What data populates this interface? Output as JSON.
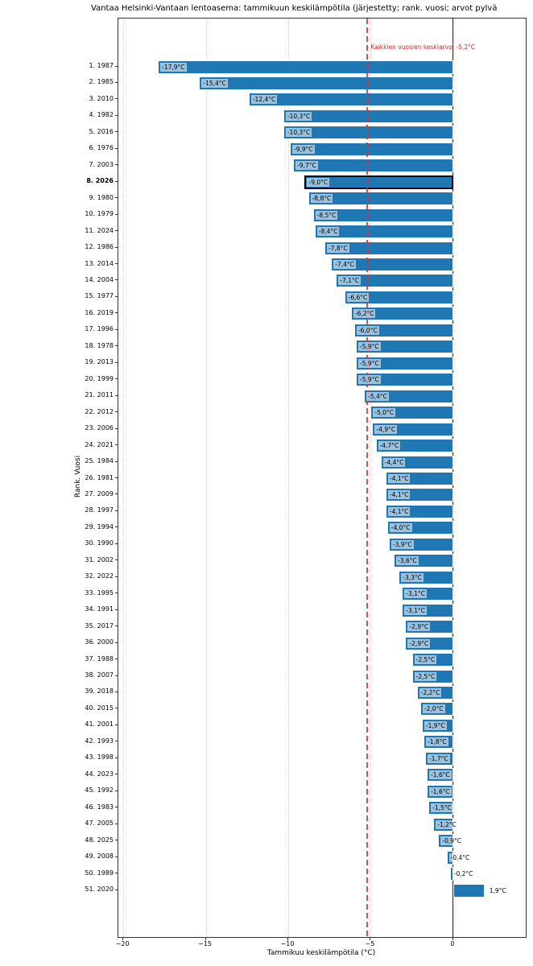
{
  "title": "Vantaa Helsinki-Vantaan lentoasema: tammikuun keskilämpötila (järjestetty; rank. vuosi; arvot pylvä",
  "axes": {
    "xlabel": "Tammikuu keskilämpötila (°C)",
    "ylabel": "Rank. Vuosi",
    "xtick_values": [
      -20,
      -15,
      -10,
      -5,
      0
    ],
    "xtick_labels": [
      "−20",
      "−15",
      "−10",
      "−5",
      "0"
    ],
    "xlim": [
      -20.3,
      4.4
    ]
  },
  "annotation": {
    "text": "Kaikkien vuosien keskiarvo: -5,2°C",
    "value": -5.2,
    "color": "#d62728"
  },
  "chart_data": {
    "type": "bar",
    "orientation": "horizontal",
    "title": "Vantaa Helsinki-Vantaan lentoasema: tammikuun keskilämpötila (järjestetty; rank. vuosi; arvot pylvä",
    "xlabel": "Tammikuu keskilämpötila (°C)",
    "ylabel": "Rank. Vuosi",
    "xlim": [
      -20.3,
      4.4
    ],
    "grid": "dotted-vertical",
    "bar_color": "#1f77b4",
    "bar_edge_color": "#ffffff",
    "highlight_edge_color": "#000000",
    "zero_line_color": "#2b2b2b",
    "mean_line": {
      "value": -5.2,
      "style": "dashed",
      "color": "#d62728"
    },
    "rows": [
      {
        "rank": 1,
        "year": 1987,
        "value": -17.9,
        "label": "-17,9°C",
        "highlight": false
      },
      {
        "rank": 2,
        "year": 1985,
        "value": -15.4,
        "label": "-15,4°C",
        "highlight": false
      },
      {
        "rank": 3,
        "year": 2010,
        "value": -12.4,
        "label": "-12,4°C",
        "highlight": false
      },
      {
        "rank": 4,
        "year": 1982,
        "value": -10.3,
        "label": "-10,3°C",
        "highlight": false
      },
      {
        "rank": 5,
        "year": 2016,
        "value": -10.3,
        "label": "-10,3°C",
        "highlight": false
      },
      {
        "rank": 6,
        "year": 1976,
        "value": -9.9,
        "label": "-9,9°C",
        "highlight": false
      },
      {
        "rank": 7,
        "year": 2003,
        "value": -9.7,
        "label": "-9,7°C",
        "highlight": false
      },
      {
        "rank": 8,
        "year": 2026,
        "value": -9.0,
        "label": "-9,0°C",
        "highlight": true
      },
      {
        "rank": 9,
        "year": 1980,
        "value": -8.8,
        "label": "-8,8°C",
        "highlight": false
      },
      {
        "rank": 10,
        "year": 1979,
        "value": -8.5,
        "label": "-8,5°C",
        "highlight": false
      },
      {
        "rank": 11,
        "year": 2024,
        "value": -8.4,
        "label": "-8,4°C",
        "highlight": false
      },
      {
        "rank": 12,
        "year": 1986,
        "value": -7.8,
        "label": "-7,8°C",
        "highlight": false
      },
      {
        "rank": 13,
        "year": 2014,
        "value": -7.4,
        "label": "-7,4°C",
        "highlight": false
      },
      {
        "rank": 14,
        "year": 2004,
        "value": -7.1,
        "label": "-7,1°C",
        "highlight": false
      },
      {
        "rank": 15,
        "year": 1977,
        "value": -6.6,
        "label": "-6,6°C",
        "highlight": false
      },
      {
        "rank": 16,
        "year": 2019,
        "value": -6.2,
        "label": "-6,2°C",
        "highlight": false
      },
      {
        "rank": 17,
        "year": 1996,
        "value": -6.0,
        "label": "-6,0°C",
        "highlight": false
      },
      {
        "rank": 18,
        "year": 1978,
        "value": -5.9,
        "label": "-5,9°C",
        "highlight": false
      },
      {
        "rank": 19,
        "year": 2013,
        "value": -5.9,
        "label": "-5,9°C",
        "highlight": false
      },
      {
        "rank": 20,
        "year": 1999,
        "value": -5.9,
        "label": "-5,9°C",
        "highlight": false
      },
      {
        "rank": 21,
        "year": 2011,
        "value": -5.4,
        "label": "-5,4°C",
        "highlight": false
      },
      {
        "rank": 22,
        "year": 2012,
        "value": -5.0,
        "label": "-5,0°C",
        "highlight": false
      },
      {
        "rank": 23,
        "year": 2006,
        "value": -4.9,
        "label": "-4,9°C",
        "highlight": false
      },
      {
        "rank": 24,
        "year": 2021,
        "value": -4.7,
        "label": "-4,7°C",
        "highlight": false
      },
      {
        "rank": 25,
        "year": 1984,
        "value": -4.4,
        "label": "-4,4°C",
        "highlight": false
      },
      {
        "rank": 26,
        "year": 1981,
        "value": -4.1,
        "label": "-4,1°C",
        "highlight": false
      },
      {
        "rank": 27,
        "year": 2009,
        "value": -4.1,
        "label": "-4,1°C",
        "highlight": false
      },
      {
        "rank": 28,
        "year": 1997,
        "value": -4.1,
        "label": "-4,1°C",
        "highlight": false
      },
      {
        "rank": 29,
        "year": 1994,
        "value": -4.0,
        "label": "-4,0°C",
        "highlight": false
      },
      {
        "rank": 30,
        "year": 1990,
        "value": -3.9,
        "label": "-3,9°C",
        "highlight": false
      },
      {
        "rank": 31,
        "year": 2002,
        "value": -3.6,
        "label": "-3,6°C",
        "highlight": false
      },
      {
        "rank": 32,
        "year": 2022,
        "value": -3.3,
        "label": "-3,3°C",
        "highlight": false
      },
      {
        "rank": 33,
        "year": 1995,
        "value": -3.1,
        "label": "-3,1°C",
        "highlight": false
      },
      {
        "rank": 34,
        "year": 1991,
        "value": -3.1,
        "label": "-3,1°C",
        "highlight": false
      },
      {
        "rank": 35,
        "year": 2017,
        "value": -2.9,
        "label": "-2,9°C",
        "highlight": false
      },
      {
        "rank": 36,
        "year": 2000,
        "value": -2.9,
        "label": "-2,9°C",
        "highlight": false
      },
      {
        "rank": 37,
        "year": 1988,
        "value": -2.5,
        "label": "-2,5°C",
        "highlight": false
      },
      {
        "rank": 38,
        "year": 2007,
        "value": -2.5,
        "label": "-2,5°C",
        "highlight": false
      },
      {
        "rank": 39,
        "year": 2018,
        "value": -2.2,
        "label": "-2,2°C",
        "highlight": false
      },
      {
        "rank": 40,
        "year": 2015,
        "value": -2.0,
        "label": "-2,0°C",
        "highlight": false
      },
      {
        "rank": 41,
        "year": 2001,
        "value": -1.9,
        "label": "-1,9°C",
        "highlight": false
      },
      {
        "rank": 42,
        "year": 1993,
        "value": -1.8,
        "label": "-1,8°C",
        "highlight": false
      },
      {
        "rank": 43,
        "year": 1998,
        "value": -1.7,
        "label": "-1,7°C",
        "highlight": false
      },
      {
        "rank": 44,
        "year": 2023,
        "value": -1.6,
        "label": "-1,6°C",
        "highlight": false
      },
      {
        "rank": 45,
        "year": 1992,
        "value": -1.6,
        "label": "-1,6°C",
        "highlight": false
      },
      {
        "rank": 46,
        "year": 1983,
        "value": -1.5,
        "label": "-1,5°C",
        "highlight": false
      },
      {
        "rank": 47,
        "year": 2005,
        "value": -1.2,
        "label": "-1,2°C",
        "highlight": false
      },
      {
        "rank": 48,
        "year": 2025,
        "value": -0.9,
        "label": "-0,9°C",
        "highlight": false
      },
      {
        "rank": 49,
        "year": 2008,
        "value": -0.4,
        "label": "-0,4°C",
        "highlight": false
      },
      {
        "rank": 50,
        "year": 1989,
        "value": -0.2,
        "label": "-0,2°C",
        "highlight": false
      },
      {
        "rank": 51,
        "year": 2020,
        "value": 1.9,
        "label": "1,9°C",
        "highlight": false
      }
    ]
  }
}
